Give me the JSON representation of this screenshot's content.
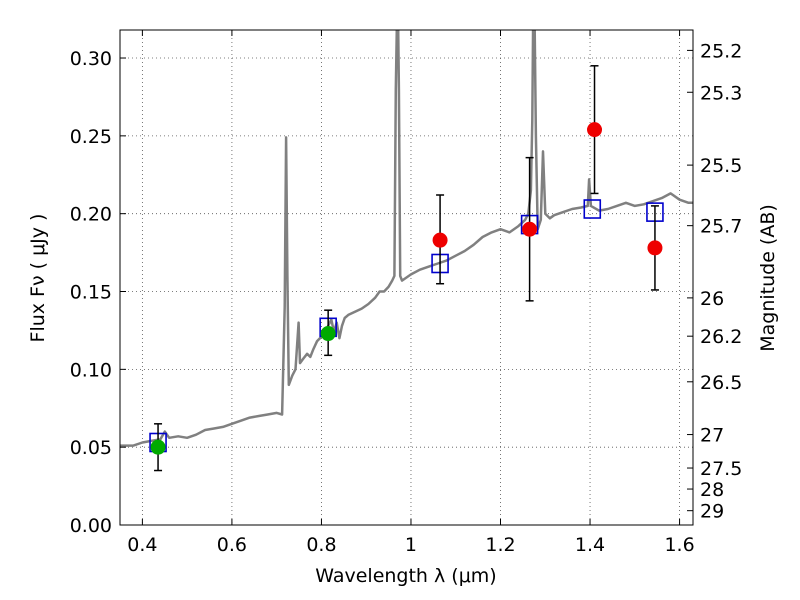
{
  "chart_data": {
    "type": "scatter",
    "xlabel": "Wavelength  λ (μm)",
    "ylabel": "Flux  Fν  ( μJy )",
    "y2label": "Magnitude (AB)",
    "xlim": [
      0.35,
      1.63
    ],
    "ylim": [
      0.0,
      0.318
    ],
    "grid": true,
    "x_ticks": [
      0.4,
      0.6,
      0.8,
      1.0,
      1.2,
      1.4,
      1.6
    ],
    "x_tick_labels": [
      "0.4",
      "0.6",
      "0.8",
      "1",
      "1.2",
      "1.4",
      "1.6"
    ],
    "y_ticks": [
      0.0,
      0.05,
      0.1,
      0.15,
      0.2,
      0.25,
      0.3
    ],
    "y_tick_labels": [
      "0.00",
      "0.05",
      "0.10",
      "0.15",
      "0.20",
      "0.25",
      "0.30"
    ],
    "mag_ticks": [
      {
        "label": "25.2",
        "flux": 0.3049
      },
      {
        "label": "25.3",
        "flux": 0.278
      },
      {
        "label": "25.5",
        "flux": 0.2312
      },
      {
        "label": "25.7",
        "flux": 0.1923
      },
      {
        "label": "26",
        "flux": 0.1459
      },
      {
        "label": "26.2",
        "flux": 0.1213
      },
      {
        "label": "26.5",
        "flux": 0.092
      },
      {
        "label": "27",
        "flux": 0.0581
      },
      {
        "label": "27.5",
        "flux": 0.0366
      },
      {
        "label": "28",
        "flux": 0.0231
      },
      {
        "label": "29",
        "flux": 0.0092
      }
    ],
    "series": [
      {
        "kind": "model-spectrum",
        "color": "#808080",
        "points": [
          [
            0.35,
            0.051
          ],
          [
            0.38,
            0.051
          ],
          [
            0.4,
            0.053
          ],
          [
            0.42,
            0.054
          ],
          [
            0.44,
            0.055
          ],
          [
            0.45,
            0.06
          ],
          [
            0.455,
            0.058
          ],
          [
            0.46,
            0.056
          ],
          [
            0.48,
            0.057
          ],
          [
            0.5,
            0.056
          ],
          [
            0.52,
            0.058
          ],
          [
            0.54,
            0.061
          ],
          [
            0.56,
            0.062
          ],
          [
            0.58,
            0.063
          ],
          [
            0.6,
            0.065
          ],
          [
            0.62,
            0.067
          ],
          [
            0.64,
            0.069
          ],
          [
            0.66,
            0.07
          ],
          [
            0.68,
            0.071
          ],
          [
            0.7,
            0.072
          ],
          [
            0.712,
            0.071
          ],
          [
            0.718,
            0.14
          ],
          [
            0.721,
            0.249
          ],
          [
            0.724,
            0.16
          ],
          [
            0.727,
            0.09
          ],
          [
            0.735,
            0.096
          ],
          [
            0.742,
            0.1
          ],
          [
            0.749,
            0.13
          ],
          [
            0.752,
            0.104
          ],
          [
            0.76,
            0.107
          ],
          [
            0.768,
            0.11
          ],
          [
            0.775,
            0.108
          ],
          [
            0.782,
            0.113
          ],
          [
            0.79,
            0.118
          ],
          [
            0.8,
            0.121
          ],
          [
            0.808,
            0.124
          ],
          [
            0.815,
            0.128
          ],
          [
            0.822,
            0.132
          ],
          [
            0.828,
            0.124
          ],
          [
            0.834,
            0.13
          ],
          [
            0.84,
            0.12
          ],
          [
            0.846,
            0.128
          ],
          [
            0.852,
            0.133
          ],
          [
            0.86,
            0.135
          ],
          [
            0.875,
            0.137
          ],
          [
            0.89,
            0.139
          ],
          [
            0.905,
            0.142
          ],
          [
            0.92,
            0.146
          ],
          [
            0.93,
            0.15
          ],
          [
            0.94,
            0.15
          ],
          [
            0.95,
            0.153
          ],
          [
            0.958,
            0.157
          ],
          [
            0.963,
            0.16
          ],
          [
            0.966,
            0.28
          ],
          [
            0.969,
            0.33
          ],
          [
            0.971,
            0.33
          ],
          [
            0.973,
            0.28
          ],
          [
            0.976,
            0.16
          ],
          [
            0.98,
            0.157
          ],
          [
            0.99,
            0.159
          ],
          [
            1.0,
            0.161
          ],
          [
            1.02,
            0.164
          ],
          [
            1.04,
            0.166
          ],
          [
            1.06,
            0.168
          ],
          [
            1.08,
            0.17
          ],
          [
            1.1,
            0.173
          ],
          [
            1.12,
            0.176
          ],
          [
            1.14,
            0.18
          ],
          [
            1.16,
            0.185
          ],
          [
            1.18,
            0.188
          ],
          [
            1.2,
            0.19
          ],
          [
            1.22,
            0.188
          ],
          [
            1.24,
            0.192
          ],
          [
            1.255,
            0.196
          ],
          [
            1.262,
            0.2
          ],
          [
            1.268,
            0.215
          ],
          [
            1.271,
            0.26
          ],
          [
            1.273,
            0.33
          ],
          [
            1.276,
            0.33
          ],
          [
            1.279,
            0.25
          ],
          [
            1.283,
            0.19
          ],
          [
            1.29,
            0.196
          ],
          [
            1.295,
            0.24
          ],
          [
            1.3,
            0.2
          ],
          [
            1.31,
            0.197
          ],
          [
            1.32,
            0.199
          ],
          [
            1.34,
            0.201
          ],
          [
            1.36,
            0.203
          ],
          [
            1.38,
            0.204
          ],
          [
            1.395,
            0.205
          ],
          [
            1.398,
            0.222
          ],
          [
            1.402,
            0.205
          ],
          [
            1.42,
            0.202
          ],
          [
            1.44,
            0.203
          ],
          [
            1.46,
            0.205
          ],
          [
            1.48,
            0.207
          ],
          [
            1.5,
            0.205
          ],
          [
            1.52,
            0.206
          ],
          [
            1.54,
            0.208
          ],
          [
            1.56,
            0.21
          ],
          [
            1.58,
            0.213
          ],
          [
            1.6,
            0.209
          ],
          [
            1.62,
            0.207
          ],
          [
            1.63,
            0.207
          ]
        ]
      },
      {
        "kind": "model-photometry",
        "marker": "open-square",
        "color": "#0000cc",
        "points": [
          [
            0.435,
            0.053
          ],
          [
            0.815,
            0.127
          ],
          [
            1.065,
            0.168
          ],
          [
            1.265,
            0.193
          ],
          [
            1.405,
            0.203
          ],
          [
            1.545,
            0.201
          ]
        ]
      },
      {
        "kind": "observed-photometry",
        "marker": "filled-circle",
        "color": "#00aa00",
        "points": [
          {
            "x": 0.435,
            "y": 0.05,
            "ylow": 0.035,
            "yhigh": 0.065
          },
          {
            "x": 0.815,
            "y": 0.123,
            "ylow": 0.109,
            "yhigh": 0.138
          }
        ]
      },
      {
        "kind": "observed-photometry",
        "marker": "filled-circle",
        "color": "#ee0000",
        "points": [
          {
            "x": 1.065,
            "y": 0.183,
            "ylow": 0.155,
            "yhigh": 0.212
          },
          {
            "x": 1.265,
            "y": 0.19,
            "ylow": 0.144,
            "yhigh": 0.236
          },
          {
            "x": 1.41,
            "y": 0.254,
            "ylow": 0.213,
            "yhigh": 0.295
          },
          {
            "x": 1.545,
            "y": 0.178,
            "ylow": 0.151,
            "yhigh": 0.205
          }
        ]
      }
    ]
  }
}
